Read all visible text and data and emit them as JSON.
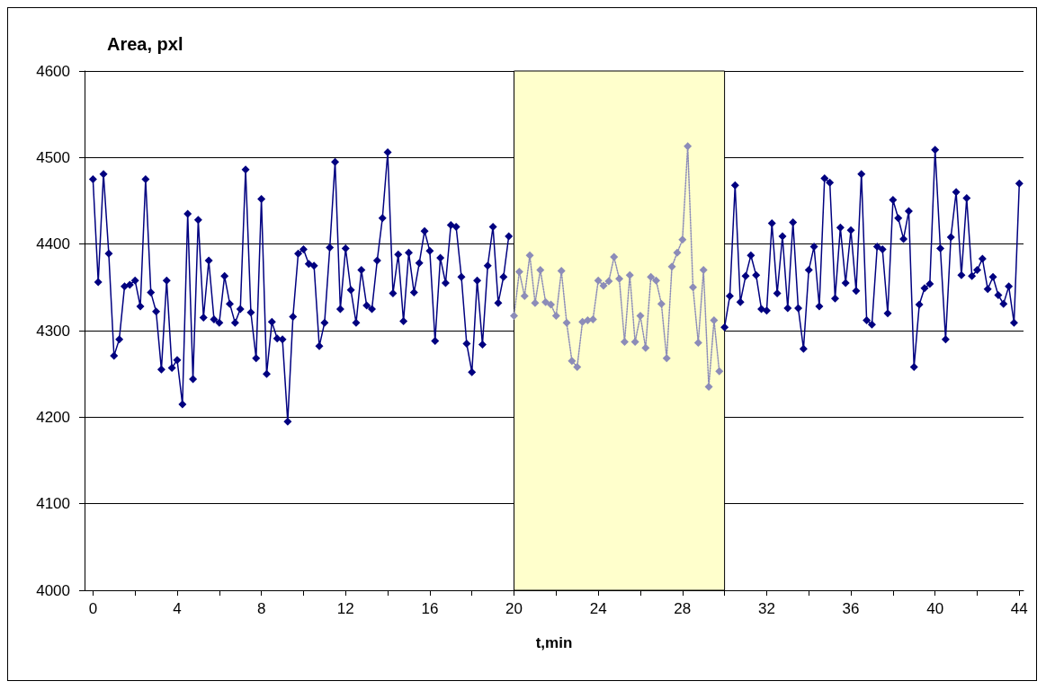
{
  "chart_data": {
    "type": "line",
    "ylabel": "Area, pxl",
    "xlabel": "t,min",
    "x": [
      0,
      0.25,
      0.5,
      0.75,
      1,
      1.25,
      1.5,
      1.75,
      2,
      2.25,
      2.5,
      2.75,
      3,
      3.25,
      3.5,
      3.75,
      4,
      4.25,
      4.5,
      4.75,
      5,
      5.25,
      5.5,
      5.75,
      6,
      6.25,
      6.5,
      6.75,
      7,
      7.25,
      7.5,
      7.75,
      8,
      8.25,
      8.5,
      8.75,
      9,
      9.25,
      9.5,
      9.75,
      10,
      10.25,
      10.5,
      10.75,
      11,
      11.25,
      11.5,
      11.75,
      12,
      12.25,
      12.5,
      12.75,
      13,
      13.25,
      13.5,
      13.75,
      14,
      14.25,
      14.5,
      14.75,
      15,
      15.25,
      15.5,
      15.75,
      16,
      16.25,
      16.5,
      16.75,
      17,
      17.25,
      17.5,
      17.75,
      18,
      18.25,
      18.5,
      18.75,
      19,
      19.25,
      19.5,
      19.75,
      20,
      20.25,
      20.5,
      20.75,
      21,
      21.25,
      21.5,
      21.75,
      22,
      22.25,
      22.5,
      22.75,
      23,
      23.25,
      23.5,
      23.75,
      24,
      24.25,
      24.5,
      24.75,
      25,
      25.25,
      25.5,
      25.75,
      26,
      26.25,
      26.5,
      26.75,
      27,
      27.25,
      27.5,
      27.75,
      28,
      28.25,
      28.5,
      28.75,
      29,
      29.25,
      29.5,
      29.75,
      30,
      30.25,
      30.5,
      30.75,
      31,
      31.25,
      31.5,
      31.75,
      32,
      32.25,
      32.5,
      32.75,
      33,
      33.25,
      33.5,
      33.75,
      34,
      34.25,
      34.5,
      34.75,
      35,
      35.25,
      35.5,
      35.75,
      36,
      36.25,
      36.5,
      36.75,
      37,
      37.25,
      37.5,
      37.75,
      38,
      38.25,
      38.5,
      38.75,
      39,
      39.25,
      39.5,
      39.75,
      40,
      40.25,
      40.5,
      40.75,
      41,
      41.25,
      41.5,
      41.75,
      42,
      42.25,
      42.5,
      42.75,
      43,
      43.25,
      43.5,
      43.75,
      44
    ],
    "series": [
      {
        "color": "#000080",
        "line_style": "solid",
        "values": [
          4475,
          4356,
          4481,
          4389,
          4271,
          4290,
          4351,
          4353,
          4358,
          4328,
          4475,
          4344,
          4322,
          4255,
          4358,
          4257,
          4266,
          4215,
          4435,
          4244,
          4428,
          4315,
          4381,
          4313,
          4309,
          4363,
          4331,
          4309,
          4325,
          4486,
          4321,
          4268,
          4452,
          4250,
          4310,
          4291,
          4290,
          4195,
          4316,
          4389,
          4394,
          4377,
          4375,
          4282,
          4309,
          4396,
          4495,
          4325,
          4395,
          4347,
          4309,
          4370,
          4329,
          4325,
          4381,
          4430,
          4506,
          4343,
          4388,
          4311,
          4390,
          4344,
          4378,
          4415,
          4392,
          4288,
          4384,
          4355,
          4422,
          4420,
          4362,
          4285,
          4252,
          4358,
          4284,
          4375,
          4420,
          4332,
          4362,
          4409,
          null,
          null,
          null,
          null,
          null,
          null,
          null,
          null,
          null,
          null,
          null,
          null,
          null,
          null,
          null,
          null,
          null,
          null,
          null,
          null,
          null,
          null,
          null,
          null,
          null,
          null,
          null,
          null,
          null,
          null,
          null,
          null,
          null,
          null,
          null,
          null,
          null,
          null,
          null,
          null,
          4304,
          4340,
          4468,
          4333,
          4363,
          4387,
          4364,
          4325,
          4323,
          4424,
          4343,
          4409,
          4326,
          4425,
          4326,
          4279,
          4370,
          4397,
          4328,
          4476,
          4471,
          4337,
          4419,
          4355,
          4416,
          4346,
          4481,
          4312,
          4307,
          4397,
          4394,
          4320,
          4451,
          4430,
          4406,
          4438,
          4258,
          4330,
          4349,
          4354,
          4509,
          4395,
          4290,
          4408,
          4460,
          4364,
          4453,
          4363,
          4370,
          4383,
          4348,
          4362,
          4341,
          4331,
          4351,
          4309,
          4470
        ]
      },
      {
        "color": "#8c8cb8",
        "line_style": "dotted",
        "values": [
          null,
          null,
          null,
          null,
          null,
          null,
          null,
          null,
          null,
          null,
          null,
          null,
          null,
          null,
          null,
          null,
          null,
          null,
          null,
          null,
          null,
          null,
          null,
          null,
          null,
          null,
          null,
          null,
          null,
          null,
          null,
          null,
          null,
          null,
          null,
          null,
          null,
          null,
          null,
          null,
          null,
          null,
          null,
          null,
          null,
          null,
          null,
          null,
          null,
          null,
          null,
          null,
          null,
          null,
          null,
          null,
          null,
          null,
          null,
          null,
          null,
          null,
          null,
          null,
          null,
          null,
          null,
          null,
          null,
          null,
          null,
          null,
          null,
          null,
          null,
          null,
          null,
          null,
          null,
          null,
          4317,
          4368,
          4340,
          4387,
          4332,
          4370,
          4333,
          4330,
          4317,
          4369,
          4309,
          4265,
          4258,
          4310,
          4312,
          4313,
          4358,
          4352,
          4357,
          4385,
          4360,
          4287,
          4364,
          4287,
          4317,
          4280,
          4362,
          4358,
          4331,
          4268,
          4374,
          4390,
          4405,
          4513,
          4350,
          4286,
          4370,
          4235,
          4312,
          4253,
          null,
          null,
          null,
          null,
          null,
          null,
          null,
          null,
          null,
          null,
          null,
          null,
          null,
          null,
          null,
          null,
          null,
          null,
          null,
          null,
          null,
          null,
          null,
          null,
          null,
          null,
          null,
          null,
          null,
          null,
          null,
          null,
          null,
          null,
          null,
          null,
          null,
          null,
          null,
          null,
          null,
          null,
          null,
          null,
          null,
          null,
          null,
          null,
          null,
          null,
          null,
          null,
          null,
          null,
          null,
          null,
          null
        ]
      }
    ],
    "xlim": [
      -0.4,
      44.2
    ],
    "xticks": [
      0,
      {
        "value": 2,
        "label": null
      },
      4,
      {
        "value": 6,
        "label": null
      },
      8,
      {
        "value": 10,
        "label": null
      },
      12,
      {
        "value": 14,
        "label": null
      },
      16,
      {
        "value": 18,
        "label": null
      },
      20,
      {
        "value": 22,
        "label": null
      },
      24,
      {
        "value": 26,
        "label": null
      },
      28,
      {
        "value": 30,
        "label": null
      },
      32,
      {
        "value": 34,
        "label": null
      },
      36,
      {
        "value": 38,
        "label": null
      },
      40,
      {
        "value": 42,
        "label": null
      },
      44
    ],
    "ylim": [
      4000,
      4600
    ],
    "yticks": [
      4000,
      4100,
      4200,
      4300,
      4400,
      4500,
      4600
    ],
    "bands": [
      {
        "axis": "x",
        "from": 20,
        "to": 30,
        "color": "#ffffcc"
      }
    ],
    "grid": "y",
    "marker": "diamond"
  }
}
